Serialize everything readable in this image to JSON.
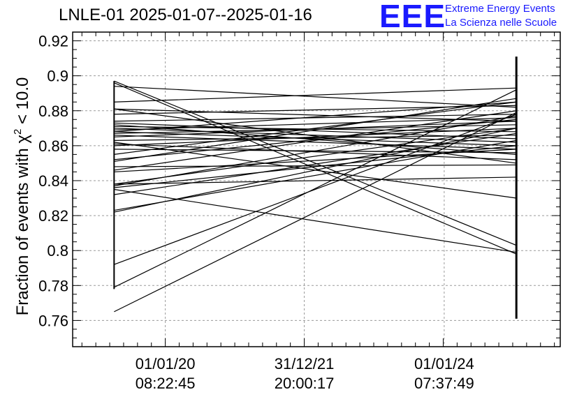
{
  "header": {
    "title": "LNLE-01 2025-01-07--2025-01-16",
    "logo_text": "EEE",
    "logo_line1": "Extreme Energy Events",
    "logo_line2": "La Scienza nelle Scuole",
    "logo_color": "#1a1aff"
  },
  "chart_data": {
    "type": "line",
    "title": "LNLE-01 2025-01-07--2025-01-16",
    "xlabel": "",
    "ylabel": "Fraction of events with χ² < 10.0",
    "ylabel_parts": {
      "pre": "Fraction of events with χ",
      "sup": "2",
      "post": " < 10.0"
    },
    "ylim": [
      0.745,
      0.925
    ],
    "yticks": [
      0.76,
      0.78,
      0.8,
      0.82,
      0.84,
      0.86,
      0.88,
      0.9,
      0.92
    ],
    "ytick_labels": [
      "0.76",
      "0.78",
      "0.8",
      "0.82",
      "0.84",
      "0.86",
      "0.88",
      "0.9",
      "0.92"
    ],
    "xlim": [
      0,
      1
    ],
    "xticks": [
      {
        "pos": 0.19,
        "line1": "01/01/20",
        "line2": "08:22:45"
      },
      {
        "pos": 0.475,
        "line1": "31/12/21",
        "line2": "20:00:17"
      },
      {
        "pos": 0.762,
        "line1": "01/01/24",
        "line2": "07:37:49"
      }
    ],
    "grid": true,
    "x_start": 0.085,
    "x_end": 0.91,
    "left_cluster_range": [
      0.778,
      0.897
    ],
    "right_cluster_range": [
      0.761,
      0.911
    ],
    "segments": [
      [
        0.765,
        0.879
      ],
      [
        0.779,
        0.892
      ],
      [
        0.792,
        0.878
      ],
      [
        0.835,
        0.799
      ],
      [
        0.822,
        0.87
      ],
      [
        0.823,
        0.863
      ],
      [
        0.837,
        0.877
      ],
      [
        0.836,
        0.86
      ],
      [
        0.838,
        0.87
      ],
      [
        0.845,
        0.858
      ],
      [
        0.848,
        0.849
      ],
      [
        0.851,
        0.887
      ],
      [
        0.852,
        0.875
      ],
      [
        0.858,
        0.856
      ],
      [
        0.86,
        0.87
      ],
      [
        0.862,
        0.83
      ],
      [
        0.863,
        0.866
      ],
      [
        0.865,
        0.874
      ],
      [
        0.866,
        0.858
      ],
      [
        0.867,
        0.872
      ],
      [
        0.868,
        0.86
      ],
      [
        0.869,
        0.876
      ],
      [
        0.87,
        0.862
      ],
      [
        0.871,
        0.868
      ],
      [
        0.872,
        0.855
      ],
      [
        0.873,
        0.864
      ],
      [
        0.874,
        0.878
      ],
      [
        0.881,
        0.874
      ],
      [
        0.881,
        0.85
      ],
      [
        0.885,
        0.893
      ],
      [
        0.894,
        0.882
      ],
      [
        0.897,
        0.803
      ],
      [
        0.896,
        0.798
      ],
      [
        0.855,
        0.885
      ],
      [
        0.846,
        0.88
      ],
      [
        0.832,
        0.867
      ],
      [
        0.838,
        0.842
      ],
      [
        0.878,
        0.883
      ],
      [
        0.868,
        0.885
      ],
      [
        0.861,
        0.852
      ]
    ]
  }
}
